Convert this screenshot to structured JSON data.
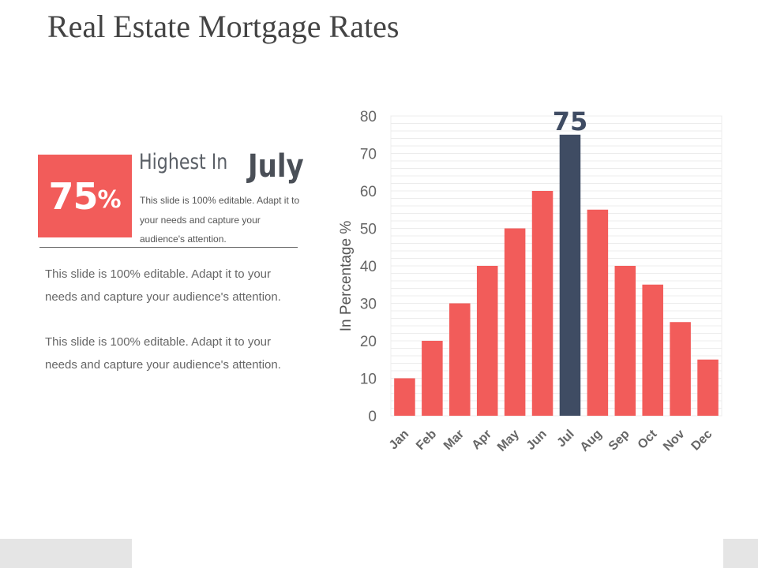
{
  "slide": {
    "title": "Real Estate Mortgage Rates"
  },
  "highlight": {
    "value": "75",
    "unit": "%",
    "heading_prefix": "Highest  In",
    "heading_month": "July",
    "subtext": "This slide is 100% editable. Adapt it to your needs and capture your audience's attention."
  },
  "paragraphs": [
    "This slide is 100% editable. Adapt it to your needs and capture your audience's attention.",
    "This slide is 100% editable. Adapt it to your needs and capture your audience's attention."
  ],
  "colors": {
    "bar": "#f25c5a",
    "highlight_bar": "#3f4c63",
    "grid": "#ececec",
    "axis_text": "#666666"
  },
  "chart_data": {
    "type": "bar",
    "categories": [
      "Jan",
      "Feb",
      "Mar",
      "Apr",
      "May",
      "Jun",
      "Jul",
      "Aug",
      "Sep",
      "Oct",
      "Nov",
      "Dec"
    ],
    "values": [
      10,
      20,
      30,
      40,
      50,
      60,
      75,
      55,
      40,
      35,
      25,
      15
    ],
    "ylabel": "In Percentage %",
    "ylim": [
      0,
      80
    ],
    "yticks": [
      0,
      10,
      20,
      30,
      40,
      50,
      60,
      70,
      80
    ],
    "highlight_category": "Jul",
    "highlight_label": "75",
    "grid": true,
    "legend": false
  }
}
